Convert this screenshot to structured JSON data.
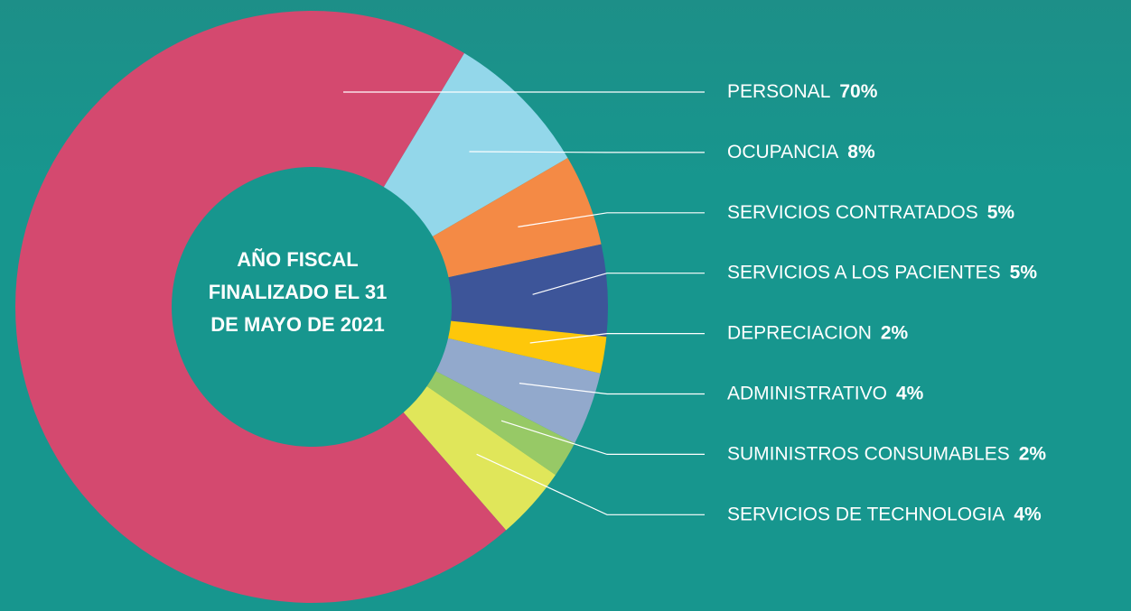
{
  "chart_data": {
    "type": "donut",
    "center_label": "AÑO FISCAL FINALIZADO EL 31 DE MAYO DE 2021",
    "categories": [
      "PERSONAL",
      "OCUPANCIA",
      "SERVICIOS CONTRATADOS",
      "SERVICIOS A LOS PACIENTES",
      "DEPRECIACION",
      "ADMINISTRATIVO",
      "SUMINISTROS CONSUMABLES",
      "SERVICIOS DE TECHNOLOGIA"
    ],
    "values": [
      70,
      8,
      5,
      5,
      2,
      4,
      2,
      4
    ],
    "value_labels": [
      "70%",
      "8%",
      "5%",
      "5%",
      "2%",
      "4%",
      "2%",
      "4%"
    ],
    "colors": [
      "#d4496f",
      "#93d7ea",
      "#f48a45",
      "#3d5599",
      "#fec70a",
      "#92a9cc",
      "#97c966",
      "#e0e65a"
    ]
  }
}
